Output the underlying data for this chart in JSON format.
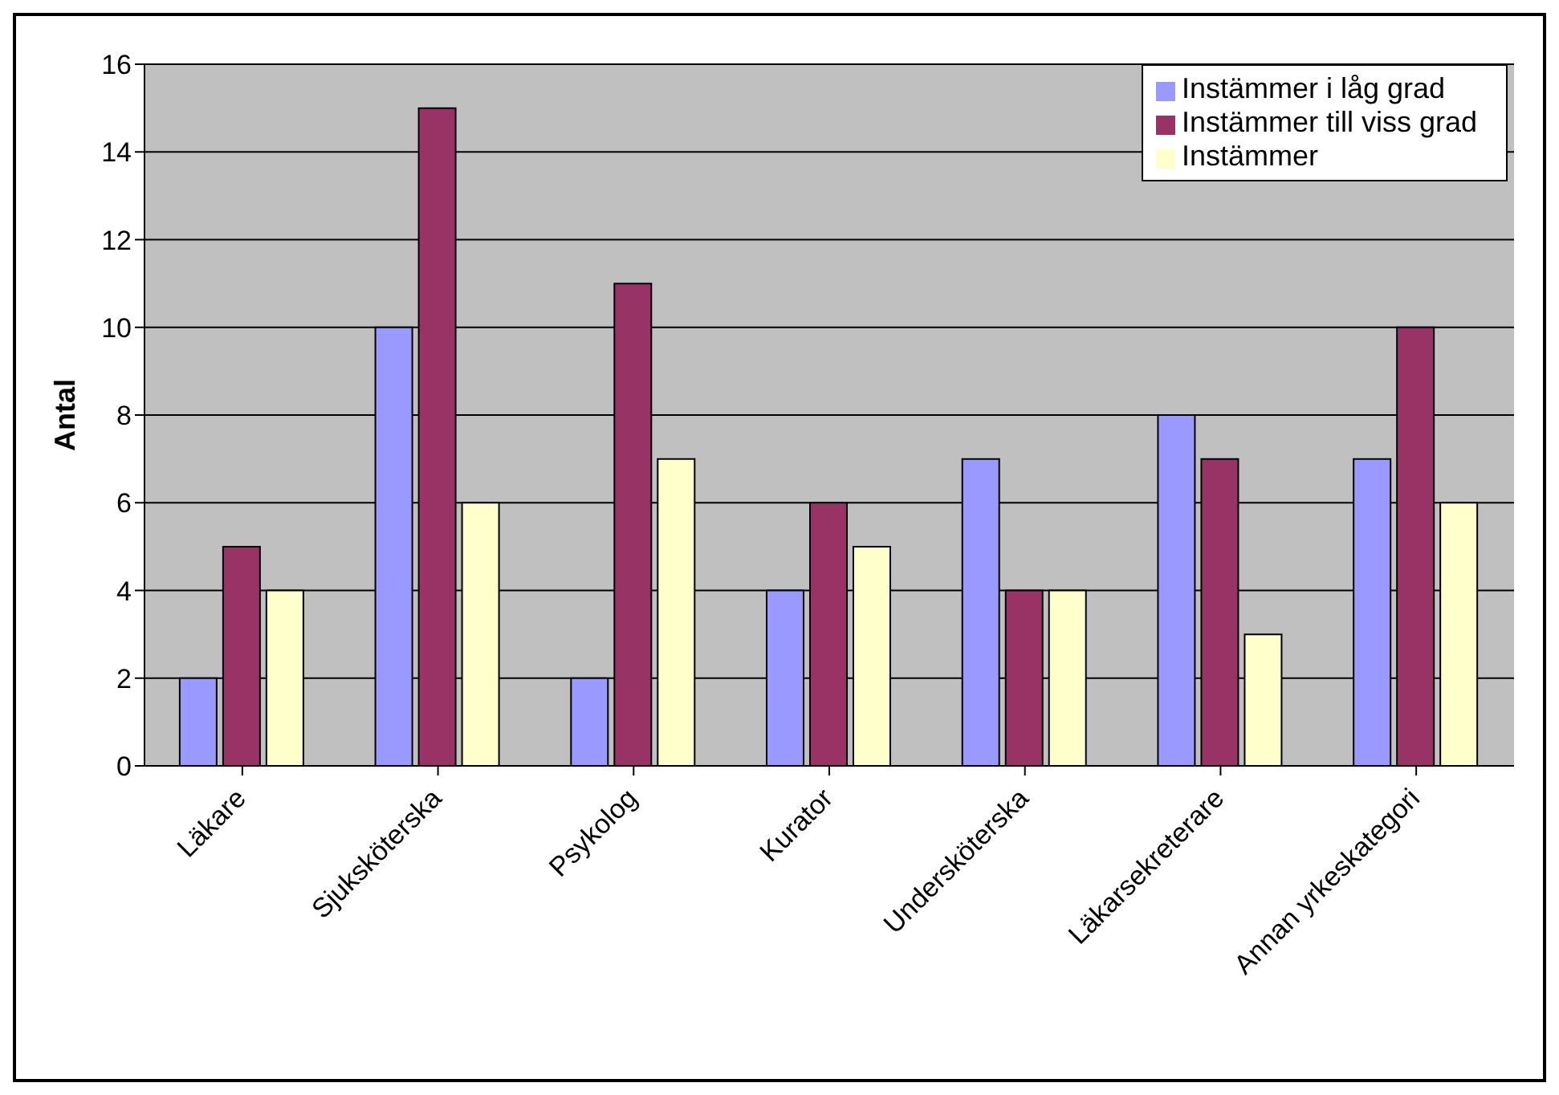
{
  "chart_data": {
    "type": "bar",
    "ylabel": "Antal",
    "categories": [
      "Läkare",
      "Sjuksköterska",
      "Psykolog",
      "Kurator",
      "Undersköterska",
      "Läkarsekreterare",
      "Annan yrkeskategori"
    ],
    "series": [
      {
        "name": "Instämmer i låg grad",
        "color": "#9999ff",
        "values": [
          2,
          10,
          2,
          4,
          7,
          8,
          7
        ]
      },
      {
        "name": "Instämmer till viss grad",
        "color": "#993366",
        "values": [
          5,
          15,
          11,
          6,
          4,
          7,
          10
        ]
      },
      {
        "name": "Instämmer",
        "color": "#ffffcc",
        "values": [
          4,
          6,
          7,
          5,
          4,
          3,
          6
        ]
      }
    ],
    "ylim": [
      0,
      16
    ],
    "yticks": [
      0,
      2,
      4,
      6,
      8,
      10,
      12,
      14,
      16
    ],
    "grid": "y",
    "legend": "top right"
  }
}
